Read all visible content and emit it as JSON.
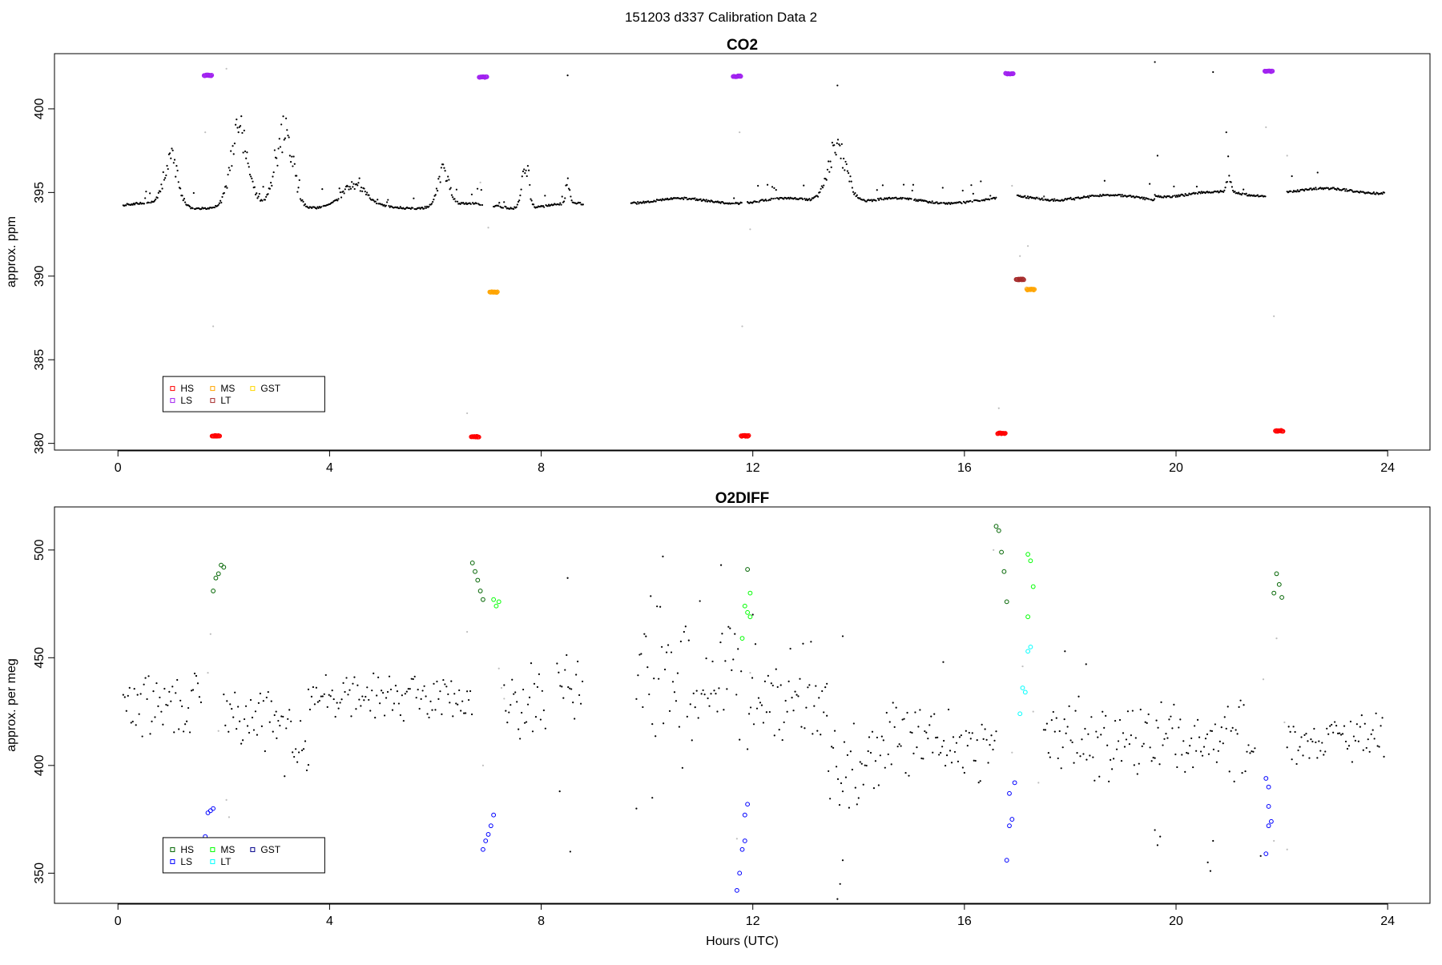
{
  "figure": {
    "title": "151203   d337   Calibration Data 2"
  },
  "colors": {
    "HS_co2": "#ff0000",
    "MS_co2": "#ffa500",
    "LS_co2": "#a020f0",
    "LT_co2": "#a52a2a",
    "GST_co2": "#ffd700",
    "HS_o2": "#006400",
    "MS_o2": "#00ff00",
    "LS_o2": "#0000ff",
    "LT_o2": "#00ffff",
    "GST_o2": "#00008b",
    "ambient": "#000000",
    "flagged": "#bebebe"
  },
  "chart_data": [
    {
      "type": "scatter",
      "title": "CO2",
      "xlabel": "",
      "ylabel": "approx. ppm",
      "xlim": [
        -1.2,
        24.8
      ],
      "ylim": [
        379.6,
        403.3
      ],
      "xticks": [
        0,
        4,
        8,
        12,
        16,
        20,
        24
      ],
      "yticks": [
        380,
        385,
        390,
        395,
        400
      ],
      "grid": false,
      "legend": {
        "placement": "lower-left",
        "entries": [
          {
            "name": "HS",
            "color": "#ff0000"
          },
          {
            "name": "MS",
            "color": "#ffa500"
          },
          {
            "name": "LS",
            "color": "#a020f0"
          },
          {
            "name": "LT",
            "color": "#a52a2a"
          },
          {
            "name": "GST",
            "color": "#ffd700"
          }
        ]
      },
      "series": [
        {
          "name": "HS",
          "color": "#ff0000",
          "points": [
            [
              1.85,
              380.45
            ],
            [
              6.75,
              380.4
            ],
            [
              11.85,
              380.45
            ],
            [
              16.7,
              380.6
            ],
            [
              21.95,
              380.75
            ]
          ]
        },
        {
          "name": "MS",
          "color": "#ffa500",
          "points": [
            [
              7.1,
              389.05
            ],
            [
              17.25,
              389.2
            ]
          ]
        },
        {
          "name": "LS",
          "color": "#a020f0",
          "points": [
            [
              1.7,
              402.0
            ],
            [
              6.9,
              401.9
            ],
            [
              11.7,
              401.95
            ],
            [
              16.85,
              402.1
            ],
            [
              21.75,
              402.25
            ]
          ]
        },
        {
          "name": "LT",
          "color": "#a52a2a",
          "points": [
            [
              17.05,
              389.8
            ]
          ]
        },
        {
          "name": "ambient",
          "color": "#000000",
          "ambient_segments": [
            {
              "x": [
                0.1,
                6.9
              ],
              "base": 394.2
            },
            {
              "x": [
                7.1,
                8.8
              ],
              "base": 394.2
            },
            {
              "x": [
                9.7,
                11.8
              ],
              "base": 394.5
            },
            {
              "x": [
                11.9,
                16.6
              ],
              "base": 394.5
            },
            {
              "x": [
                17.0,
                19.6
              ],
              "base": 394.7
            },
            {
              "x": [
                19.6,
                21.7
              ],
              "base": 394.9
            },
            {
              "x": [
                22.1,
                23.95
              ],
              "base": 395.1
            }
          ],
          "spikes": [
            {
              "x": 1.0,
              "amp": 3.7,
              "w": 0.18
            },
            {
              "x": 2.3,
              "amp": 5.5,
              "w": 0.22
            },
            {
              "x": 3.15,
              "amp": 5.6,
              "w": 0.22
            },
            {
              "x": 4.45,
              "amp": 1.4,
              "w": 0.3
            },
            {
              "x": 6.15,
              "amp": 2.5,
              "w": 0.15
            },
            {
              "x": 7.7,
              "amp": 3.4,
              "w": 0.09
            },
            {
              "x": 8.5,
              "amp": 1.7,
              "w": 0.05
            },
            {
              "x": 13.6,
              "amp": 4.0,
              "w": 0.25
            },
            {
              "x": 21.0,
              "amp": 1.2,
              "w": 0.06
            }
          ],
          "outliers": [
            [
              8.5,
              402.0
            ],
            [
              13.6,
              401.4
            ],
            [
              19.6,
              402.8
            ],
            [
              20.7,
              402.2
            ],
            [
              19.65,
              397.2
            ],
            [
              20.95,
              398.6
            ],
            [
              18.65,
              395.7
            ]
          ]
        },
        {
          "name": "flagged",
          "color": "#bebebe",
          "points": [
            [
              1.8,
              387.0
            ],
            [
              2.05,
              402.4
            ],
            [
              1.65,
              398.6
            ],
            [
              6.6,
              381.8
            ],
            [
              6.85,
              395.6
            ],
            [
              7.0,
              392.9
            ],
            [
              11.75,
              398.6
            ],
            [
              11.8,
              387.0
            ],
            [
              11.95,
              392.8
            ],
            [
              16.65,
              382.1
            ],
            [
              16.9,
              395.4
            ],
            [
              17.05,
              391.2
            ],
            [
              17.2,
              391.8
            ],
            [
              21.7,
              398.9
            ],
            [
              21.85,
              387.6
            ],
            [
              22.1,
              397.2
            ],
            [
              17.4,
              394.7
            ],
            [
              17.5,
              394.7
            ],
            [
              7.2,
              394.3
            ]
          ]
        }
      ]
    },
    {
      "type": "scatter",
      "title": "O2DIFF",
      "xlabel": "Hours (UTC)",
      "ylabel": "approx. per meg",
      "xlim": [
        -1.2,
        24.8
      ],
      "ylim": [
        336,
        520
      ],
      "xticks": [
        0,
        4,
        8,
        12,
        16,
        20,
        24
      ],
      "yticks": [
        350,
        400,
        450,
        500
      ],
      "grid": false,
      "legend": {
        "placement": "lower-left",
        "entries": [
          {
            "name": "HS",
            "color": "#006400"
          },
          {
            "name": "MS",
            "color": "#00ff00"
          },
          {
            "name": "LS",
            "color": "#0000ff"
          },
          {
            "name": "LT",
            "color": "#00ffff"
          },
          {
            "name": "GST",
            "color": "#00008b"
          }
        ]
      },
      "series": [
        {
          "name": "HS",
          "color": "#006400",
          "points": [
            [
              1.8,
              481
            ],
            [
              1.85,
              487
            ],
            [
              1.9,
              489
            ],
            [
              1.95,
              493
            ],
            [
              2.0,
              492
            ],
            [
              6.7,
              494
            ],
            [
              6.75,
              490
            ],
            [
              6.8,
              486
            ],
            [
              6.85,
              481
            ],
            [
              6.9,
              477
            ],
            [
              11.9,
              491
            ],
            [
              16.6,
              511
            ],
            [
              16.65,
              509
            ],
            [
              16.7,
              499
            ],
            [
              16.75,
              490
            ],
            [
              16.8,
              476
            ],
            [
              21.85,
              480
            ],
            [
              21.9,
              489
            ],
            [
              21.95,
              484
            ],
            [
              22.0,
              478
            ]
          ]
        },
        {
          "name": "MS",
          "color": "#00ff00",
          "points": [
            [
              7.1,
              477
            ],
            [
              7.15,
              474
            ],
            [
              7.2,
              476
            ],
            [
              11.85,
              474
            ],
            [
              11.9,
              471
            ],
            [
              11.95,
              469
            ],
            [
              11.8,
              459
            ],
            [
              11.95,
              480
            ],
            [
              17.2,
              498
            ],
            [
              17.25,
              495
            ],
            [
              17.3,
              483
            ],
            [
              17.2,
              469
            ]
          ]
        },
        {
          "name": "LS",
          "color": "#0000ff",
          "points": [
            [
              1.65,
              367
            ],
            [
              1.7,
              378
            ],
            [
              1.75,
              379
            ],
            [
              1.8,
              380
            ],
            [
              6.9,
              361
            ],
            [
              6.95,
              365
            ],
            [
              7.0,
              368
            ],
            [
              7.05,
              372
            ],
            [
              7.1,
              377
            ],
            [
              11.7,
              342
            ],
            [
              11.75,
              350
            ],
            [
              11.8,
              361
            ],
            [
              11.85,
              365
            ],
            [
              11.85,
              377
            ],
            [
              11.9,
              382
            ],
            [
              16.8,
              356
            ],
            [
              16.85,
              372
            ],
            [
              16.9,
              375
            ],
            [
              16.95,
              392
            ],
            [
              16.85,
              387
            ],
            [
              21.7,
              359
            ],
            [
              21.75,
              372
            ],
            [
              21.8,
              374
            ],
            [
              21.75,
              381
            ],
            [
              21.7,
              394
            ],
            [
              21.75,
              390
            ]
          ]
        },
        {
          "name": "LT",
          "color": "#00ffff",
          "points": [
            [
              17.05,
              424
            ],
            [
              17.1,
              436
            ],
            [
              17.15,
              434
            ],
            [
              17.2,
              453
            ],
            [
              17.25,
              455
            ]
          ]
        },
        {
          "name": "ambient",
          "color": "#000000",
          "ambient_segments": [
            {
              "x": [
                0.1,
                1.6
              ],
              "base": 428,
              "spread": 12
            },
            {
              "x": [
                2.0,
                3.0
              ],
              "base": 422,
              "spread": 14
            },
            {
              "x": [
                3.0,
                3.6
              ],
              "base": 414,
              "spread": 12
            },
            {
              "x": [
                3.6,
                6.7
              ],
              "base": 432,
              "spread": 8
            },
            {
              "x": [
                7.3,
                8.1
              ],
              "base": 430,
              "spread": 12
            },
            {
              "x": [
                8.3,
                8.8
              ],
              "base": 440,
              "spread": 16
            },
            {
              "x": [
                9.8,
                11.8
              ],
              "base": 440,
              "spread": 30
            },
            {
              "x": [
                11.9,
                13.4
              ],
              "base": 435,
              "spread": 18
            },
            {
              "x": [
                13.4,
                14.2
              ],
              "base": 395,
              "spread": 20
            },
            {
              "x": [
                14.2,
                16.6
              ],
              "base": 410,
              "spread": 16
            },
            {
              "x": [
                17.5,
                21.5
              ],
              "base": 412,
              "spread": 14
            },
            {
              "x": [
                22.1,
                23.95
              ],
              "base": 412,
              "spread": 10
            }
          ],
          "outliers": [
            [
              8.55,
              360
            ],
            [
              8.35,
              388
            ],
            [
              9.8,
              380
            ],
            [
              13.6,
              338
            ],
            [
              13.65,
              345
            ],
            [
              13.7,
              356
            ],
            [
              19.6,
              370
            ],
            [
              19.65,
              363
            ],
            [
              19.7,
              367
            ],
            [
              20.6,
              355
            ],
            [
              20.65,
              351
            ],
            [
              20.7,
              365
            ],
            [
              21.6,
              358
            ],
            [
              10.3,
              497
            ],
            [
              11.4,
              493
            ],
            [
              13.7,
              460
            ],
            [
              12.0,
              470
            ],
            [
              8.5,
              487
            ],
            [
              17.9,
              453
            ],
            [
              18.3,
              447
            ],
            [
              15.6,
              448
            ],
            [
              10.1,
              385
            ]
          ]
        },
        {
          "name": "flagged",
          "color": "#bebebe",
          "points": [
            [
              1.75,
              461
            ],
            [
              1.7,
              443
            ],
            [
              1.9,
              416
            ],
            [
              2.05,
              384
            ],
            [
              2.1,
              376
            ],
            [
              6.6,
              462
            ],
            [
              6.9,
              400
            ],
            [
              7.2,
              445
            ],
            [
              7.3,
              431
            ],
            [
              7.25,
              436
            ],
            [
              11.7,
              366
            ],
            [
              11.95,
              443
            ],
            [
              16.55,
              500
            ],
            [
              16.9,
              406
            ],
            [
              17.1,
              446
            ],
            [
              17.3,
              425
            ],
            [
              17.4,
              392
            ],
            [
              21.65,
              440
            ],
            [
              21.9,
              459
            ],
            [
              22.1,
              361
            ],
            [
              22.05,
              420
            ],
            [
              21.85,
              365
            ]
          ]
        }
      ]
    }
  ]
}
